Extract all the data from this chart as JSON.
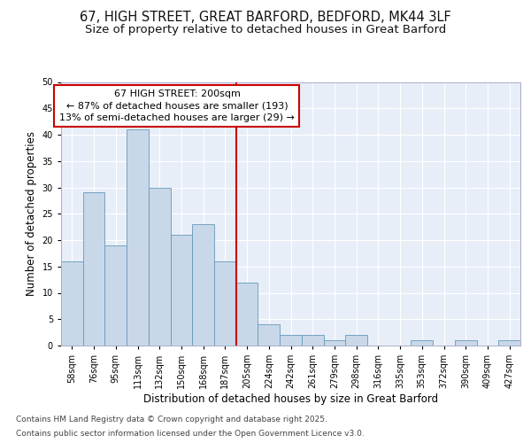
{
  "title_line1": "67, HIGH STREET, GREAT BARFORD, BEDFORD, MK44 3LF",
  "title_line2": "Size of property relative to detached houses in Great Barford",
  "xlabel": "Distribution of detached houses by size in Great Barford",
  "ylabel": "Number of detached properties",
  "bins": [
    "58sqm",
    "76sqm",
    "95sqm",
    "113sqm",
    "132sqm",
    "150sqm",
    "168sqm",
    "187sqm",
    "205sqm",
    "224sqm",
    "242sqm",
    "261sqm",
    "279sqm",
    "298sqm",
    "316sqm",
    "335sqm",
    "353sqm",
    "372sqm",
    "390sqm",
    "409sqm",
    "427sqm"
  ],
  "values": [
    16,
    29,
    19,
    41,
    30,
    21,
    23,
    16,
    12,
    4,
    2,
    2,
    1,
    2,
    0,
    0,
    1,
    0,
    1,
    0,
    1
  ],
  "bar_color": "#c8d8e8",
  "bar_edge_color": "#6699bb",
  "vline_color": "#cc0000",
  "annotation_line1": "67 HIGH STREET: 200sqm",
  "annotation_line2": "← 87% of detached houses are smaller (193)",
  "annotation_line3": "13% of semi-detached houses are larger (29) →",
  "annotation_box_color": "#cc0000",
  "ylim": [
    0,
    50
  ],
  "yticks": [
    0,
    5,
    10,
    15,
    20,
    25,
    30,
    35,
    40,
    45,
    50
  ],
  "background_color": "#e8eef8",
  "footer_line1": "Contains HM Land Registry data © Crown copyright and database right 2025.",
  "footer_line2": "Contains public sector information licensed under the Open Government Licence v3.0.",
  "title_fontsize": 10.5,
  "subtitle_fontsize": 9.5,
  "axis_label_fontsize": 8.5,
  "tick_fontsize": 7,
  "annotation_fontsize": 8,
  "footer_fontsize": 6.5
}
